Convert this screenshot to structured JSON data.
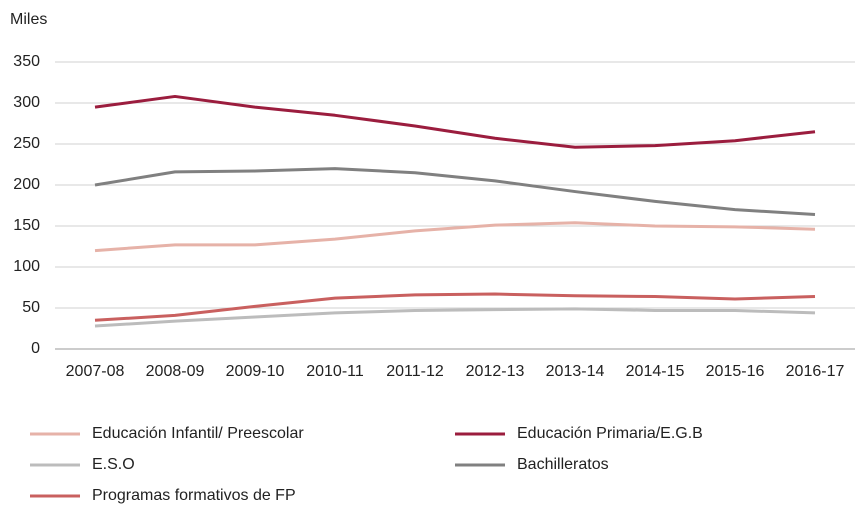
{
  "chart_data": {
    "type": "line",
    "y_axis_label": "Miles",
    "categories": [
      "2007-08",
      "2008-09",
      "2009-10",
      "2010-11",
      "2011-12",
      "2012-13",
      "2013-14",
      "2014-15",
      "2015-16",
      "2016-17"
    ],
    "series": [
      {
        "name": "Educación Infantil/ Preescolar",
        "color": "#e6b2a8",
        "values": [
          120,
          127,
          127,
          134,
          144,
          151,
          154,
          150,
          149,
          146
        ]
      },
      {
        "name": "Educación Primaria/E.G.B",
        "color": "#9b1d3e",
        "values": [
          295,
          308,
          295,
          285,
          272,
          257,
          246,
          248,
          254,
          265
        ]
      },
      {
        "name": "E.S.O",
        "color": "#bcbcbc",
        "values": [
          28,
          34,
          39,
          44,
          47,
          48,
          49,
          47,
          47,
          44
        ]
      },
      {
        "name": "Bachilleratos",
        "color": "#808080",
        "values": [
          200,
          216,
          217,
          220,
          215,
          205,
          192,
          180,
          170,
          164
        ]
      },
      {
        "name": "Programas formativos de FP",
        "color": "#c9605f",
        "values": [
          35,
          41,
          52,
          62,
          66,
          67,
          65,
          64,
          61,
          64
        ]
      }
    ],
    "ylim": [
      0,
      350
    ],
    "yticks": [
      0,
      50,
      100,
      150,
      200,
      250,
      300,
      350
    ],
    "grid": true
  }
}
